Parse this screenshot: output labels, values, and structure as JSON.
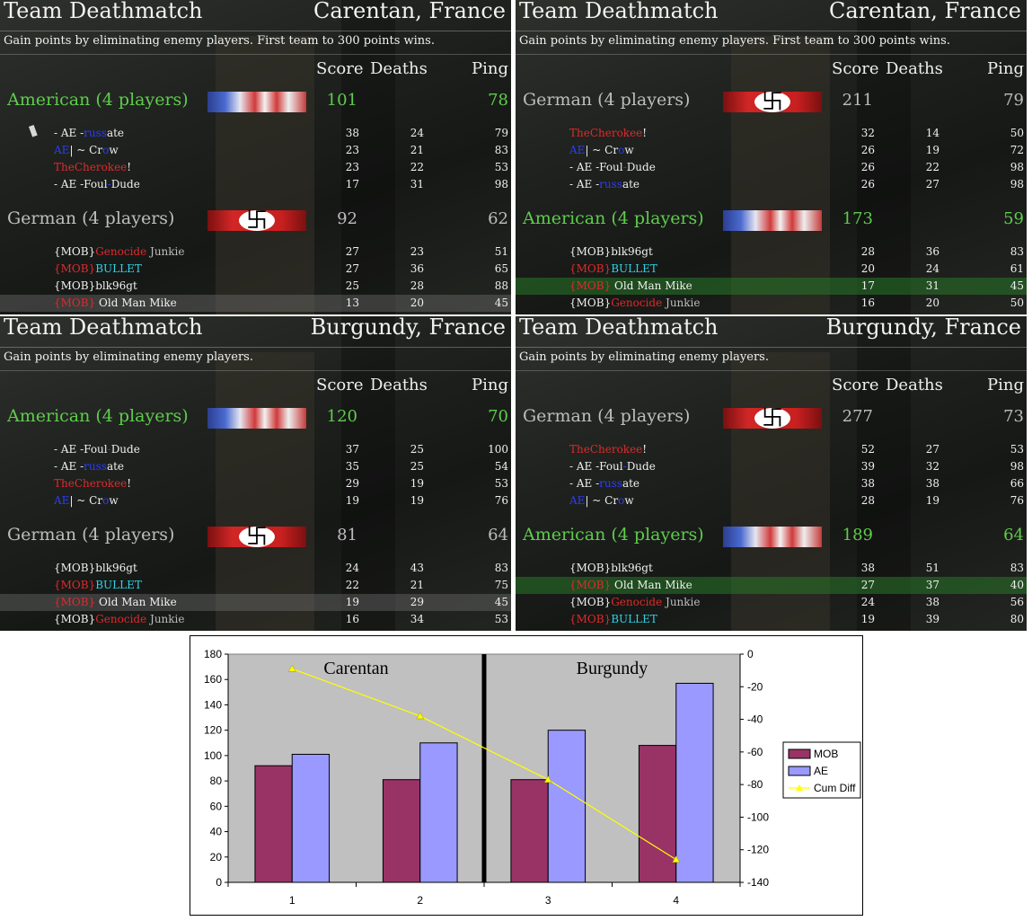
{
  "panels": [
    {
      "title": "Team Deathmatch",
      "map": "Carentan, France",
      "description": "Gain points by eliminating enemy players. First team to 300 points wins.",
      "headers": {
        "score": "Score",
        "deaths": "Deaths",
        "ping": "Ping"
      },
      "teams": [
        {
          "name": "American (4 players)",
          "score": "101",
          "ping": "78",
          "style": "green",
          "flag": "us",
          "players": [
            {
              "parts": [
                {
                  "t": "- AE -",
                  "c": "w"
                },
                {
                  "t": "russ",
                  "c": "blue"
                },
                {
                  "t": "ate",
                  "c": "w"
                }
              ],
              "score": "38",
              "deaths": "24",
              "ping": "79",
              "icon": true
            },
            {
              "parts": [
                {
                  "t": "AE",
                  "c": "blue"
                },
                {
                  "t": "| ~ Cr",
                  "c": "w"
                },
                {
                  "t": "o",
                  "c": "blue"
                },
                {
                  "t": "w",
                  "c": "w"
                }
              ],
              "score": "23",
              "deaths": "21",
              "ping": "83"
            },
            {
              "parts": [
                {
                  "t": "TheCherokee",
                  "c": "red"
                },
                {
                  "t": "!",
                  "c": "w"
                }
              ],
              "score": "23",
              "deaths": "22",
              "ping": "53"
            },
            {
              "parts": [
                {
                  "t": "- AE -Foul",
                  "c": "w"
                },
                {
                  "t": "-",
                  "c": "blue"
                },
                {
                  "t": "Dude",
                  "c": "w"
                }
              ],
              "score": "17",
              "deaths": "31",
              "ping": "98"
            }
          ]
        },
        {
          "name": "German (4 players)",
          "score": "92",
          "ping": "62",
          "style": "grey",
          "flag": "de",
          "players": [
            {
              "parts": [
                {
                  "t": "{MOB}",
                  "c": "w"
                },
                {
                  "t": "Genocide",
                  "c": "red"
                },
                {
                  "t": " Junkie",
                  "c": "grey"
                }
              ],
              "score": "27",
              "deaths": "23",
              "ping": "51"
            },
            {
              "parts": [
                {
                  "t": "{MOB}",
                  "c": "red"
                },
                {
                  "t": "BULLET",
                  "c": "cyan"
                }
              ],
              "score": "27",
              "deaths": "36",
              "ping": "65"
            },
            {
              "parts": [
                {
                  "t": "{MOB}blk96gt",
                  "c": "w"
                }
              ],
              "score": "25",
              "deaths": "28",
              "ping": "88"
            },
            {
              "parts": [
                {
                  "t": "{MOB}",
                  "c": "red"
                },
                {
                  "t": " Old Man Mike",
                  "c": "w"
                }
              ],
              "score": "13",
              "deaths": "20",
              "ping": "45",
              "hl": "grey"
            }
          ]
        }
      ]
    },
    {
      "title": "Team Deathmatch",
      "map": "Carentan, France",
      "description": "Gain points by eliminating enemy players. First team to 300 points wins.",
      "headers": {
        "score": "Score",
        "deaths": "Deaths",
        "ping": "Ping"
      },
      "teams": [
        {
          "name": "German (4 players)",
          "score": "211",
          "ping": "79",
          "style": "grey",
          "flag": "de",
          "players": [
            {
              "parts": [
                {
                  "t": "TheCherokee",
                  "c": "red"
                },
                {
                  "t": "!",
                  "c": "w"
                }
              ],
              "score": "32",
              "deaths": "14",
              "ping": "50"
            },
            {
              "parts": [
                {
                  "t": "AE",
                  "c": "blue"
                },
                {
                  "t": "| ~ Cr",
                  "c": "w"
                },
                {
                  "t": "o",
                  "c": "blue"
                },
                {
                  "t": "w",
                  "c": "w"
                }
              ],
              "score": "26",
              "deaths": "19",
              "ping": "72"
            },
            {
              "parts": [
                {
                  "t": "- AE -Foul",
                  "c": "w"
                },
                {
                  "t": "-",
                  "c": "blue"
                },
                {
                  "t": "Dude",
                  "c": "w"
                }
              ],
              "score": "26",
              "deaths": "22",
              "ping": "98"
            },
            {
              "parts": [
                {
                  "t": "- AE -",
                  "c": "w"
                },
                {
                  "t": "russ",
                  "c": "blue"
                },
                {
                  "t": "ate",
                  "c": "w"
                }
              ],
              "score": "26",
              "deaths": "27",
              "ping": "98"
            }
          ]
        },
        {
          "name": "American (4 players)",
          "score": "173",
          "ping": "59",
          "style": "green",
          "flag": "us",
          "players": [
            {
              "parts": [
                {
                  "t": "{MOB}blk96gt",
                  "c": "w"
                }
              ],
              "score": "28",
              "deaths": "36",
              "ping": "83"
            },
            {
              "parts": [
                {
                  "t": "{MOB}",
                  "c": "red"
                },
                {
                  "t": "BULLET",
                  "c": "cyan"
                }
              ],
              "score": "20",
              "deaths": "24",
              "ping": "61"
            },
            {
              "parts": [
                {
                  "t": "{MOB}",
                  "c": "red"
                },
                {
                  "t": " Old Man Mike",
                  "c": "w"
                }
              ],
              "score": "17",
              "deaths": "31",
              "ping": "45",
              "hl": "green"
            },
            {
              "parts": [
                {
                  "t": "{MOB}",
                  "c": "w"
                },
                {
                  "t": "Genocide",
                  "c": "red"
                },
                {
                  "t": " Junkie",
                  "c": "grey"
                }
              ],
              "score": "16",
              "deaths": "20",
              "ping": "50"
            }
          ]
        }
      ]
    },
    {
      "title": "Team Deathmatch",
      "map": "Burgundy, France",
      "description": "Gain points by eliminating enemy players.",
      "headers": {
        "score": "Score",
        "deaths": "Deaths",
        "ping": "Ping"
      },
      "teams": [
        {
          "name": "American (4 players)",
          "score": "120",
          "ping": "70",
          "style": "green",
          "flag": "us",
          "players": [
            {
              "parts": [
                {
                  "t": "- AE -Foul",
                  "c": "w"
                },
                {
                  "t": "-",
                  "c": "blue"
                },
                {
                  "t": "Dude",
                  "c": "w"
                }
              ],
              "score": "37",
              "deaths": "25",
              "ping": "100"
            },
            {
              "parts": [
                {
                  "t": "- AE -",
                  "c": "w"
                },
                {
                  "t": "russ",
                  "c": "blue"
                },
                {
                  "t": "ate",
                  "c": "w"
                }
              ],
              "score": "35",
              "deaths": "25",
              "ping": "54"
            },
            {
              "parts": [
                {
                  "t": "TheCherokee",
                  "c": "red"
                },
                {
                  "t": "!",
                  "c": "w"
                }
              ],
              "score": "29",
              "deaths": "19",
              "ping": "53"
            },
            {
              "parts": [
                {
                  "t": "AE",
                  "c": "blue"
                },
                {
                  "t": "| ~ Cr",
                  "c": "w"
                },
                {
                  "t": "o",
                  "c": "blue"
                },
                {
                  "t": "w",
                  "c": "w"
                }
              ],
              "score": "19",
              "deaths": "19",
              "ping": "76"
            }
          ]
        },
        {
          "name": "German (4 players)",
          "score": "81",
          "ping": "64",
          "style": "grey",
          "flag": "de",
          "players": [
            {
              "parts": [
                {
                  "t": "{MOB}blk96gt",
                  "c": "w"
                }
              ],
              "score": "24",
              "deaths": "43",
              "ping": "83"
            },
            {
              "parts": [
                {
                  "t": "{MOB}",
                  "c": "red"
                },
                {
                  "t": "BULLET",
                  "c": "cyan"
                }
              ],
              "score": "22",
              "deaths": "21",
              "ping": "75"
            },
            {
              "parts": [
                {
                  "t": "{MOB}",
                  "c": "red"
                },
                {
                  "t": " Old Man Mike",
                  "c": "w"
                }
              ],
              "score": "19",
              "deaths": "29",
              "ping": "45",
              "hl": "grey"
            },
            {
              "parts": [
                {
                  "t": "{MOB}",
                  "c": "w"
                },
                {
                  "t": "Genocide",
                  "c": "red"
                },
                {
                  "t": " Junkie",
                  "c": "grey"
                }
              ],
              "score": "16",
              "deaths": "34",
              "ping": "53"
            }
          ]
        }
      ]
    },
    {
      "title": "Team Deathmatch",
      "map": "Burgundy, France",
      "description": "Gain points by eliminating enemy players.",
      "headers": {
        "score": "Score",
        "deaths": "Deaths",
        "ping": "Ping"
      },
      "teams": [
        {
          "name": "German (4 players)",
          "score": "277",
          "ping": "73",
          "style": "grey",
          "flag": "de",
          "players": [
            {
              "parts": [
                {
                  "t": "TheCherokee",
                  "c": "red"
                },
                {
                  "t": "!",
                  "c": "w"
                }
              ],
              "score": "52",
              "deaths": "27",
              "ping": "53"
            },
            {
              "parts": [
                {
                  "t": "- AE -Foul",
                  "c": "w"
                },
                {
                  "t": "-",
                  "c": "blue"
                },
                {
                  "t": "Dude",
                  "c": "w"
                }
              ],
              "score": "39",
              "deaths": "32",
              "ping": "98"
            },
            {
              "parts": [
                {
                  "t": "- AE -",
                  "c": "w"
                },
                {
                  "t": "russ",
                  "c": "blue"
                },
                {
                  "t": "ate",
                  "c": "w"
                }
              ],
              "score": "38",
              "deaths": "38",
              "ping": "66"
            },
            {
              "parts": [
                {
                  "t": "AE",
                  "c": "blue"
                },
                {
                  "t": "| ~ Cr",
                  "c": "w"
                },
                {
                  "t": "o",
                  "c": "blue"
                },
                {
                  "t": "w",
                  "c": "w"
                }
              ],
              "score": "28",
              "deaths": "19",
              "ping": "76"
            }
          ]
        },
        {
          "name": "American (4 players)",
          "score": "189",
          "ping": "64",
          "style": "green",
          "flag": "us",
          "players": [
            {
              "parts": [
                {
                  "t": "{MOB}blk96gt",
                  "c": "w"
                }
              ],
              "score": "38",
              "deaths": "51",
              "ping": "83"
            },
            {
              "parts": [
                {
                  "t": "{MOB}",
                  "c": "red"
                },
                {
                  "t": " Old Man Mike",
                  "c": "w"
                }
              ],
              "score": "27",
              "deaths": "37",
              "ping": "40",
              "hl": "green"
            },
            {
              "parts": [
                {
                  "t": "{MOB}",
                  "c": "w"
                },
                {
                  "t": "Genocide",
                  "c": "red"
                },
                {
                  "t": " Junkie",
                  "c": "grey"
                }
              ],
              "score": "24",
              "deaths": "38",
              "ping": "56"
            },
            {
              "parts": [
                {
                  "t": "{MOB}",
                  "c": "red"
                },
                {
                  "t": "BULLET",
                  "c": "cyan"
                }
              ],
              "score": "19",
              "deaths": "39",
              "ping": "80"
            }
          ]
        }
      ]
    }
  ],
  "icons": {
    "voice": "speaker-icon"
  },
  "colors": {
    "green": "#5fcc4c",
    "grey": "#bdbdbd",
    "red": "#e02a2a",
    "blue": "#2b3dff",
    "cyan": "#2ed3e6",
    "mob": "#993366",
    "ae": "#9999ff",
    "cum": "#ffff00",
    "plot_bg": "#c0c0c0"
  },
  "chart_data": {
    "type": "bar",
    "categories": [
      "1",
      "2",
      "3",
      "4"
    ],
    "series": [
      {
        "name": "MOB",
        "values": [
          92,
          81,
          81,
          108
        ],
        "color": "#993366"
      },
      {
        "name": "AE",
        "values": [
          101,
          110,
          120,
          157
        ],
        "color": "#9999ff"
      }
    ],
    "line_series": {
      "name": "Cum Diff",
      "values": [
        -9,
        -38,
        -77,
        -126
      ],
      "axis": "right",
      "color": "#ffff00",
      "marker": "triangle"
    },
    "ylim": [
      0,
      180
    ],
    "y_ticks": [
      0,
      20,
      40,
      60,
      80,
      100,
      120,
      140,
      160,
      180
    ],
    "y2lim": [
      -140,
      0
    ],
    "y2_ticks": [
      0,
      -20,
      -40,
      -60,
      -80,
      -100,
      -120,
      -140
    ],
    "annotations": [
      "Carentan",
      "Burgundy"
    ],
    "divider_after_category": 2,
    "legend": "right",
    "grid": false
  }
}
